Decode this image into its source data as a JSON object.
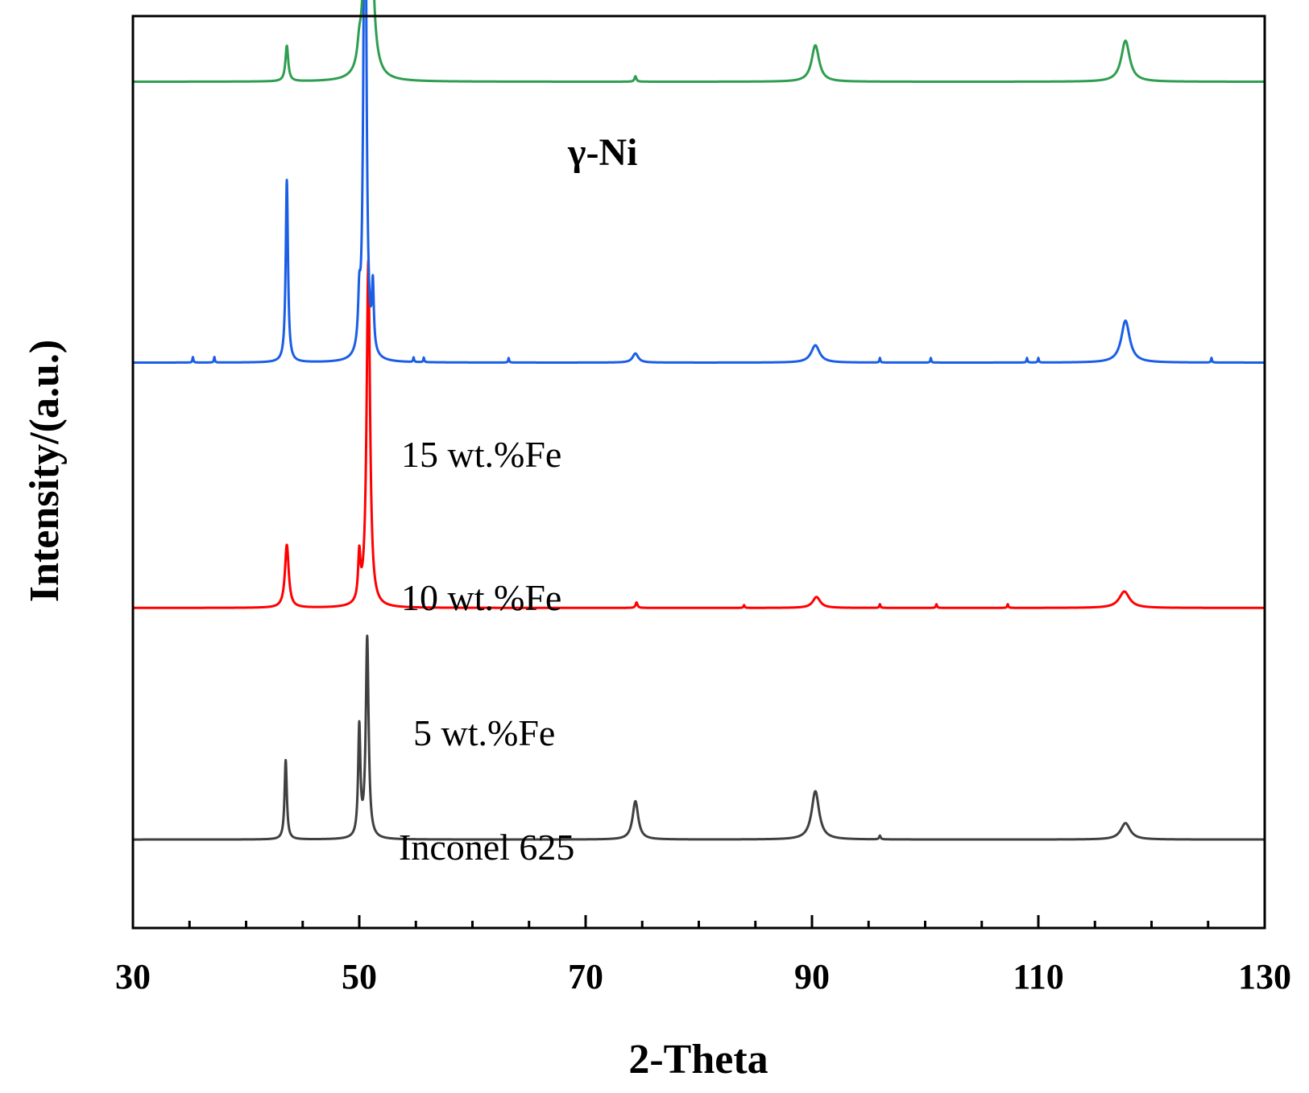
{
  "chart_data": {
    "type": "line",
    "title": "",
    "xlabel": "2-Theta",
    "ylabel": "Intensity/(a.u.)",
    "xlim": [
      30,
      130
    ],
    "ylim": [
      0,
      100
    ],
    "xticks": [
      30,
      50,
      70,
      90,
      110,
      130
    ],
    "xtick_labels": [
      "30",
      "50",
      "70",
      "90",
      "110",
      "130"
    ],
    "minor_xtick_step": 5,
    "annotation": "γ-Ni",
    "series": [
      {
        "name": "Inconel 625",
        "label": "Inconel 625",
        "color": "#404040",
        "baseline": 9.7,
        "peaks": [
          {
            "x": 43.5,
            "h": 8.7,
            "w": 0.12
          },
          {
            "x": 50.0,
            "h": 12.0,
            "w": 0.12
          },
          {
            "x": 50.7,
            "h": 22.0,
            "w": 0.15
          },
          {
            "x": 74.4,
            "h": 4.2,
            "w": 0.3
          },
          {
            "x": 90.3,
            "h": 5.3,
            "w": 0.4
          },
          {
            "x": 96.0,
            "h": 0.4,
            "w": 0.08
          },
          {
            "x": 117.7,
            "h": 1.8,
            "w": 0.5
          }
        ]
      },
      {
        "name": "5 wt.%Fe",
        "label": "5 wt.%Fe",
        "color": "#ff0000",
        "baseline": 35.1,
        "peaks": [
          {
            "x": 43.6,
            "h": 6.9,
            "w": 0.2
          },
          {
            "x": 50.0,
            "h": 5.0,
            "w": 0.12
          },
          {
            "x": 50.8,
            "h": 38.0,
            "w": 0.18
          },
          {
            "x": 74.5,
            "h": 0.6,
            "w": 0.1
          },
          {
            "x": 84.0,
            "h": 0.3,
            "w": 0.06
          },
          {
            "x": 90.4,
            "h": 1.2,
            "w": 0.4
          },
          {
            "x": 96.0,
            "h": 0.4,
            "w": 0.06
          },
          {
            "x": 101.0,
            "h": 0.4,
            "w": 0.06
          },
          {
            "x": 107.3,
            "h": 0.4,
            "w": 0.06
          },
          {
            "x": 117.6,
            "h": 1.8,
            "w": 0.55
          }
        ]
      },
      {
        "name": "10 wt.%Fe",
        "label": "10 wt.%Fe",
        "color": "#1a5ee6",
        "baseline": 62.0,
        "peaks": [
          {
            "x": 35.3,
            "h": 0.6,
            "w": 0.05
          },
          {
            "x": 37.2,
            "h": 0.6,
            "w": 0.05
          },
          {
            "x": 43.6,
            "h": 20.0,
            "w": 0.12
          },
          {
            "x": 50.0,
            "h": 5.0,
            "w": 0.12
          },
          {
            "x": 50.5,
            "h": 66.0,
            "w": 0.14
          },
          {
            "x": 51.2,
            "h": 7.0,
            "w": 0.1
          },
          {
            "x": 54.8,
            "h": 0.5,
            "w": 0.05
          },
          {
            "x": 55.7,
            "h": 0.5,
            "w": 0.05
          },
          {
            "x": 63.2,
            "h": 0.5,
            "w": 0.05
          },
          {
            "x": 74.4,
            "h": 1.0,
            "w": 0.3
          },
          {
            "x": 90.3,
            "h": 1.9,
            "w": 0.45
          },
          {
            "x": 96.0,
            "h": 0.5,
            "w": 0.05
          },
          {
            "x": 100.5,
            "h": 0.5,
            "w": 0.05
          },
          {
            "x": 109.0,
            "h": 0.5,
            "w": 0.05
          },
          {
            "x": 110.0,
            "h": 0.5,
            "w": 0.05
          },
          {
            "x": 117.7,
            "h": 4.6,
            "w": 0.45
          },
          {
            "x": 125.3,
            "h": 0.5,
            "w": 0.05
          }
        ]
      },
      {
        "name": "15 wt.%Fe",
        "label": "15 wt.%Fe",
        "color": "#2e9e50",
        "baseline": 92.8,
        "peaks": [
          {
            "x": 43.6,
            "h": 3.9,
            "w": 0.15
          },
          {
            "x": 50.0,
            "h": 2.0,
            "w": 0.2
          },
          {
            "x": 50.8,
            "h": 106.0,
            "w": 0.16
          },
          {
            "x": 74.4,
            "h": 0.6,
            "w": 0.1
          },
          {
            "x": 90.3,
            "h": 4.0,
            "w": 0.4
          },
          {
            "x": 117.7,
            "h": 4.5,
            "w": 0.45
          }
        ]
      }
    ]
  }
}
